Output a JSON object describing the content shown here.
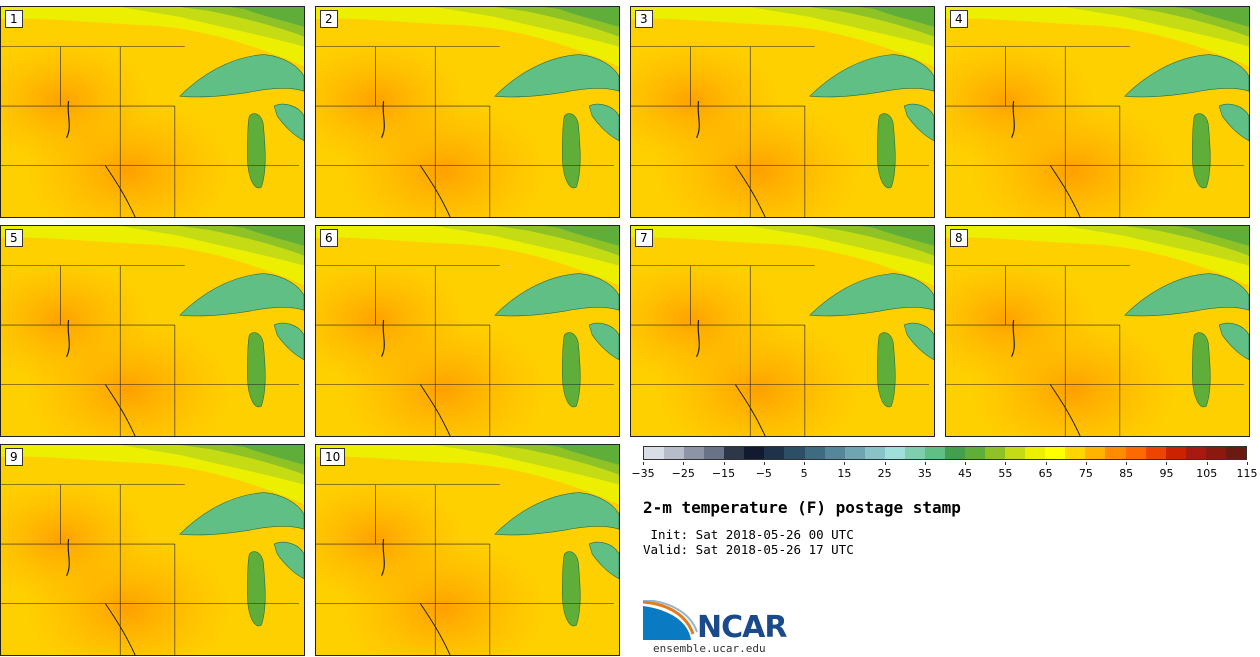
{
  "panels": [
    {
      "label": "1"
    },
    {
      "label": "2"
    },
    {
      "label": "3"
    },
    {
      "label": "4"
    },
    {
      "label": "5"
    },
    {
      "label": "6"
    },
    {
      "label": "7"
    },
    {
      "label": "8"
    },
    {
      "label": "9"
    },
    {
      "label": "10"
    }
  ],
  "colorbar": {
    "colors": [
      "#d9dde6",
      "#b7bcc9",
      "#8d94a6",
      "#6a7288",
      "#2d3748",
      "#111a2e",
      "#20324a",
      "#2d4f66",
      "#3e6b80",
      "#54879a",
      "#6ea5b1",
      "#8ac3c7",
      "#9fe0da",
      "#7fcfae",
      "#5fbf85",
      "#42a04d",
      "#5fae3a",
      "#8fc224",
      "#c5dc14",
      "#ecf000",
      "#ffff00",
      "#ffd600",
      "#ffb400",
      "#ff8c00",
      "#ff6a00",
      "#ee4400",
      "#cc2200",
      "#a81a10",
      "#8a1a10",
      "#6a1a10"
    ],
    "ticks": [
      "−35",
      "−25",
      "−15",
      "−5",
      "5",
      "15",
      "25",
      "35",
      "45",
      "55",
      "65",
      "75",
      "85",
      "95",
      "105",
      "115"
    ]
  },
  "title": "2-m temperature (F) postage stamp",
  "init_line": " Init: Sat 2018-05-26 00 UTC",
  "valid_line": "Valid: Sat 2018-05-26 17 UTC",
  "logo": {
    "text": "NCAR",
    "site": "ensemble.ucar.edu"
  }
}
